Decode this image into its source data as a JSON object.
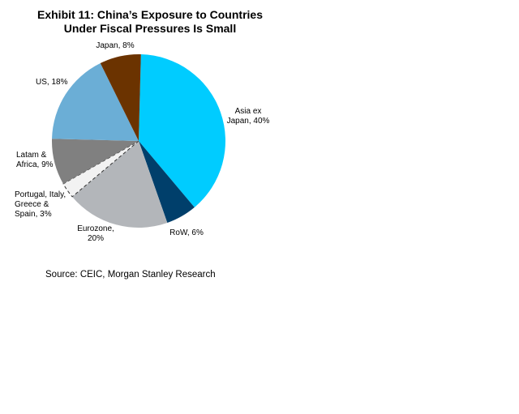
{
  "title_lines": [
    "Exhibit 11: China’s Exposure to Countries",
    "Under Fiscal Pressures Is Small"
  ],
  "source": "Source: CEIC, Morgan Stanley Research",
  "chart_data": {
    "type": "pie",
    "title": "Exhibit 11: China’s Exposure to Countries Under Fiscal Pressures Is Small",
    "slices": [
      {
        "label": "Asia ex Japan",
        "value": 40,
        "color": "#00ccff",
        "label_lines": [
          "Asia ex",
          "Japan, 40%"
        ]
      },
      {
        "label": "RoW",
        "value": 6,
        "color": "#003f6b",
        "label_lines": [
          "RoW, 6%"
        ]
      },
      {
        "label": "Eurozone",
        "value": 20,
        "color": "#b3b6ba",
        "label_lines": [
          "Eurozone,",
          "20%"
        ]
      },
      {
        "label": "Portugal, Italy, Greece & Spain",
        "value": 3,
        "color": "#f2f2f2",
        "dashed": true,
        "label_lines": [
          "Portugal, Italy,",
          "Greece &",
          "Spain, 3%"
        ]
      },
      {
        "label": "Latam & Africa",
        "value": 9,
        "color": "#808080",
        "label_lines": [
          "Latam &",
          "Africa, 9%"
        ]
      },
      {
        "label": "US",
        "value": 18,
        "color": "#6baed6",
        "label_lines": [
          "US, 18%"
        ]
      },
      {
        "label": "Japan",
        "value": 8,
        "color": "#6b3300",
        "label_lines": [
          "Japan, 8%"
        ]
      }
    ],
    "start_angle_deg": 1.5,
    "direction": "clockwise"
  }
}
